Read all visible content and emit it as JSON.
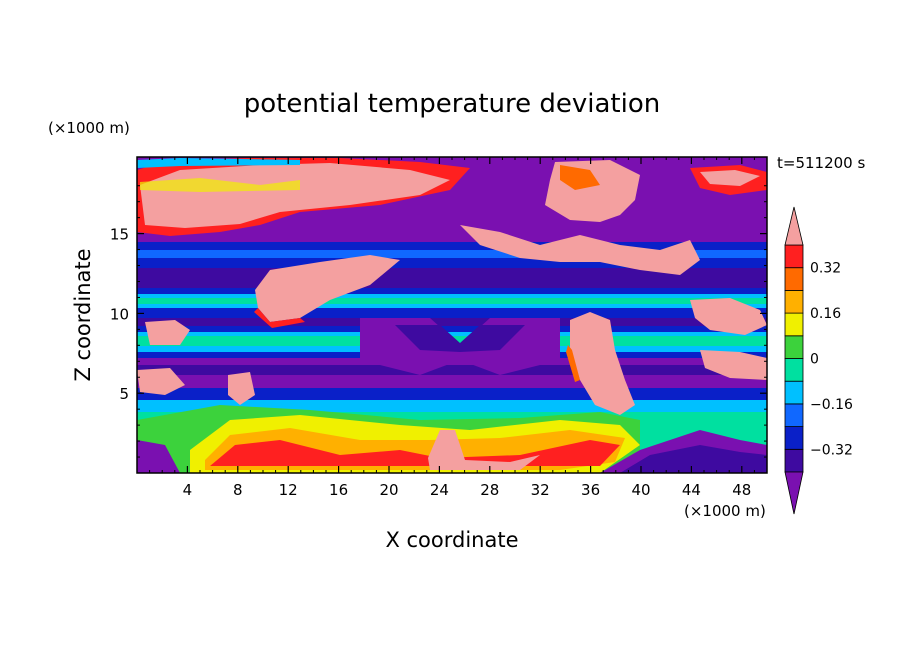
{
  "chart_data": {
    "type": "heatmap",
    "title": "potential temperature deviation",
    "xlabel": "X coordinate",
    "ylabel": "Z coordinate",
    "x_unit": "(×1000 m)",
    "y_unit": "(×1000 m)",
    "time_label": "t=511200 s",
    "xlim": [
      0,
      50
    ],
    "ylim": [
      0,
      19.8
    ],
    "x_ticks": [
      4,
      8,
      12,
      16,
      20,
      24,
      28,
      32,
      36,
      40,
      44,
      48
    ],
    "y_ticks": [
      5,
      10,
      15
    ],
    "colorbar": {
      "levels": [
        -0.4,
        -0.32,
        -0.24,
        -0.16,
        -0.08,
        0,
        0.08,
        0.16,
        0.24,
        0.32,
        0.4
      ],
      "tick_values": [
        0.32,
        0.16,
        0,
        -0.16,
        -0.32
      ],
      "tick_labels": [
        "0.32",
        "0.16",
        "0",
        "−0.16",
        "−0.32"
      ],
      "colors": [
        "#7a10b0",
        "#3e0aa0",
        "#0a20c8",
        "#1068ff",
        "#00c0ff",
        "#00e0a0",
        "#3cd23c",
        "#f0f000",
        "#ffb000",
        "#ff6a00",
        "#ff2020",
        "#f4a0a0"
      ],
      "extend": "both"
    },
    "grid": false
  }
}
